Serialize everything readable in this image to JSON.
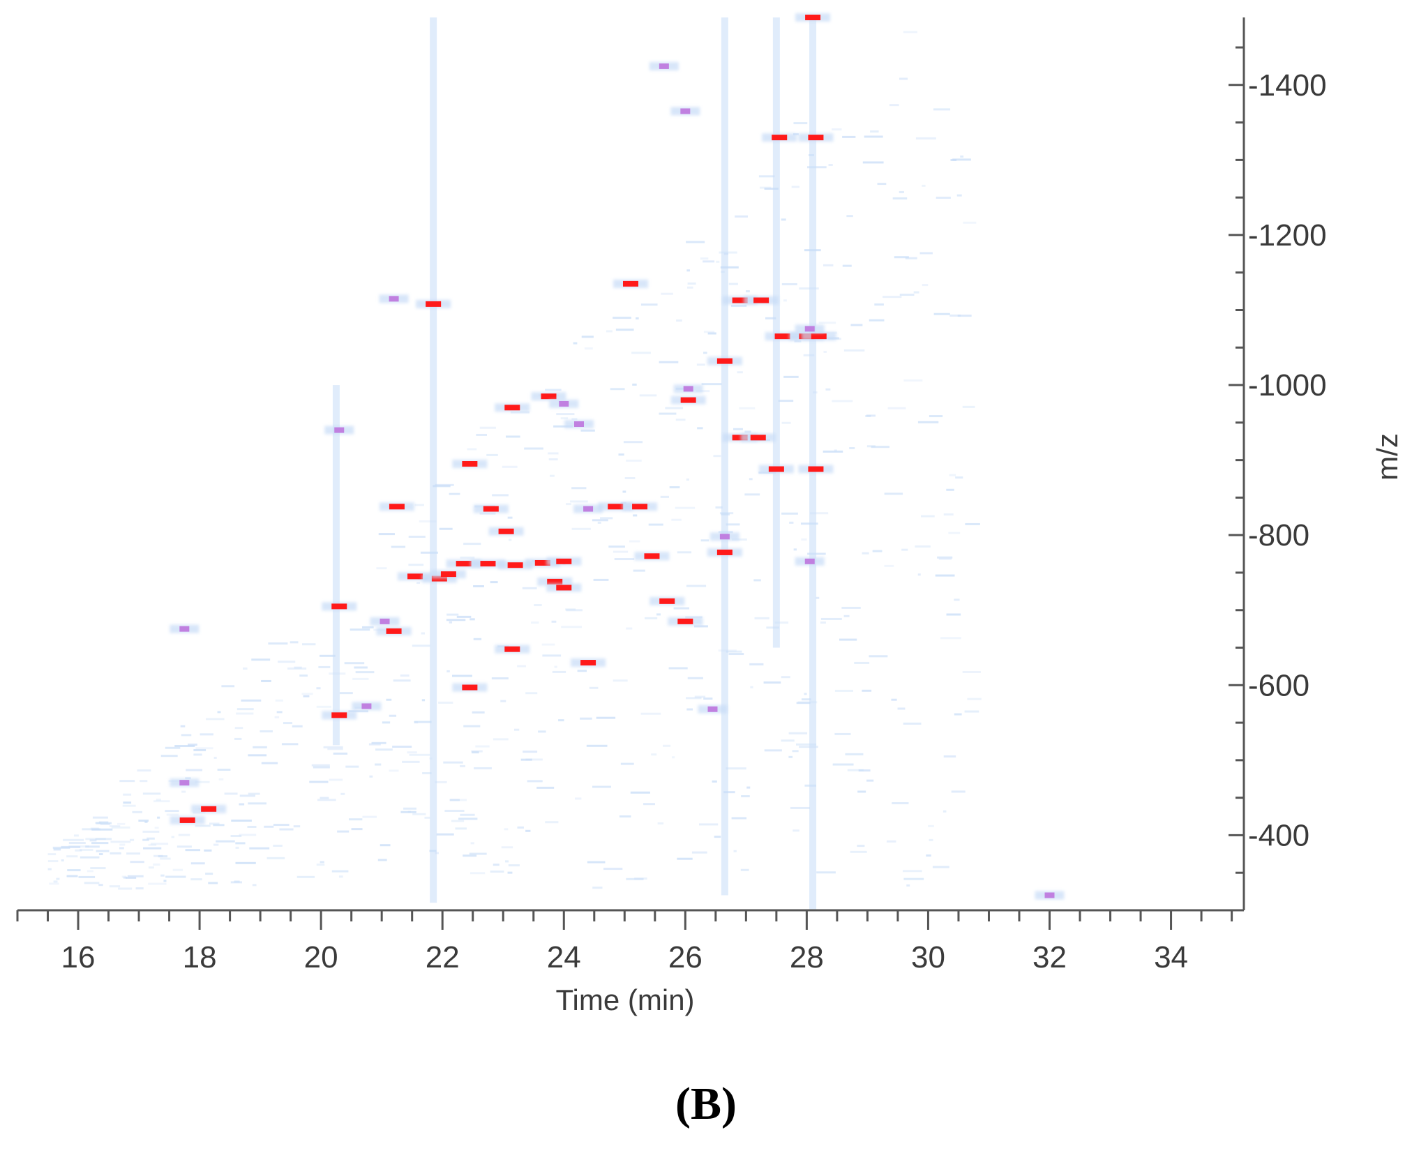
{
  "panel_label": "(B)",
  "chart_data": {
    "type": "heatmap",
    "title": "",
    "xlabel": "Time (min)",
    "ylabel": "m/z",
    "xlim": [
      15,
      35.2
    ],
    "ylim": [
      300,
      1490
    ],
    "x_ticks": [
      16,
      18,
      20,
      22,
      24,
      26,
      28,
      30,
      32,
      34
    ],
    "y_ticks": [
      400,
      600,
      800,
      1000,
      1200,
      1400
    ],
    "grid": false,
    "colors": {
      "low": "#c7dcf7",
      "mid": "#c080e0",
      "high": "#ff1a1a",
      "axis": "#555555"
    },
    "streaks": [
      {
        "x": 20.25,
        "y_from": 520,
        "y_to": 1000
      },
      {
        "x": 21.85,
        "y_from": 310,
        "y_to": 1490
      },
      {
        "x": 26.65,
        "y_from": 320,
        "y_to": 1490
      },
      {
        "x": 27.5,
        "y_from": 650,
        "y_to": 1490
      },
      {
        "x": 28.1,
        "y_from": 300,
        "y_to": 1490
      }
    ],
    "peaks": [
      {
        "x": 17.8,
        "y": 420,
        "level": "high"
      },
      {
        "x": 18.15,
        "y": 435,
        "level": "high"
      },
      {
        "x": 17.75,
        "y": 675,
        "level": "mid"
      },
      {
        "x": 17.75,
        "y": 470,
        "level": "mid"
      },
      {
        "x": 20.3,
        "y": 560,
        "level": "high"
      },
      {
        "x": 20.3,
        "y": 705,
        "level": "high"
      },
      {
        "x": 20.3,
        "y": 940,
        "level": "mid"
      },
      {
        "x": 20.75,
        "y": 572,
        "level": "mid"
      },
      {
        "x": 21.25,
        "y": 838,
        "level": "high"
      },
      {
        "x": 21.2,
        "y": 672,
        "level": "high"
      },
      {
        "x": 21.05,
        "y": 685,
        "level": "mid"
      },
      {
        "x": 21.2,
        "y": 1115,
        "level": "mid"
      },
      {
        "x": 21.55,
        "y": 745,
        "level": "high"
      },
      {
        "x": 21.95,
        "y": 742,
        "level": "high"
      },
      {
        "x": 22.1,
        "y": 748,
        "level": "high"
      },
      {
        "x": 21.85,
        "y": 1108,
        "level": "high"
      },
      {
        "x": 22.35,
        "y": 762,
        "level": "high"
      },
      {
        "x": 22.45,
        "y": 597,
        "level": "high"
      },
      {
        "x": 22.45,
        "y": 895,
        "level": "high"
      },
      {
        "x": 22.8,
        "y": 835,
        "level": "high"
      },
      {
        "x": 22.75,
        "y": 762,
        "level": "high"
      },
      {
        "x": 23.05,
        "y": 805,
        "level": "high"
      },
      {
        "x": 23.15,
        "y": 970,
        "level": "high"
      },
      {
        "x": 23.15,
        "y": 648,
        "level": "high"
      },
      {
        "x": 23.2,
        "y": 760,
        "level": "high"
      },
      {
        "x": 23.65,
        "y": 763,
        "level": "high"
      },
      {
        "x": 23.75,
        "y": 985,
        "level": "high"
      },
      {
        "x": 23.85,
        "y": 738,
        "level": "high"
      },
      {
        "x": 24.0,
        "y": 765,
        "level": "high"
      },
      {
        "x": 24.0,
        "y": 730,
        "level": "high"
      },
      {
        "x": 24.0,
        "y": 975,
        "level": "mid"
      },
      {
        "x": 24.25,
        "y": 948,
        "level": "mid"
      },
      {
        "x": 24.4,
        "y": 630,
        "level": "high"
      },
      {
        "x": 24.4,
        "y": 835,
        "level": "mid"
      },
      {
        "x": 24.85,
        "y": 838,
        "level": "high"
      },
      {
        "x": 25.25,
        "y": 838,
        "level": "high"
      },
      {
        "x": 25.1,
        "y": 1135,
        "level": "high"
      },
      {
        "x": 25.45,
        "y": 772,
        "level": "high"
      },
      {
        "x": 25.7,
        "y": 712,
        "level": "high"
      },
      {
        "x": 25.65,
        "y": 1425,
        "level": "mid"
      },
      {
        "x": 26.05,
        "y": 980,
        "level": "high"
      },
      {
        "x": 26.05,
        "y": 995,
        "level": "mid"
      },
      {
        "x": 26.0,
        "y": 685,
        "level": "high"
      },
      {
        "x": 26.0,
        "y": 1365,
        "level": "mid"
      },
      {
        "x": 26.45,
        "y": 568,
        "level": "mid"
      },
      {
        "x": 26.65,
        "y": 1032,
        "level": "high"
      },
      {
        "x": 26.65,
        "y": 777,
        "level": "high"
      },
      {
        "x": 26.65,
        "y": 798,
        "level": "mid"
      },
      {
        "x": 26.9,
        "y": 930,
        "level": "high"
      },
      {
        "x": 27.2,
        "y": 930,
        "level": "high"
      },
      {
        "x": 26.9,
        "y": 1113,
        "level": "high"
      },
      {
        "x": 27.25,
        "y": 1113,
        "level": "high"
      },
      {
        "x": 27.55,
        "y": 1330,
        "level": "high"
      },
      {
        "x": 28.15,
        "y": 1330,
        "level": "high"
      },
      {
        "x": 27.6,
        "y": 1065,
        "level": "high"
      },
      {
        "x": 28.0,
        "y": 1065,
        "level": "high"
      },
      {
        "x": 28.2,
        "y": 1065,
        "level": "high"
      },
      {
        "x": 28.05,
        "y": 1075,
        "level": "mid"
      },
      {
        "x": 27.5,
        "y": 888,
        "level": "high"
      },
      {
        "x": 28.15,
        "y": 888,
        "level": "high"
      },
      {
        "x": 28.1,
        "y": 1490,
        "level": "high"
      },
      {
        "x": 28.05,
        "y": 765,
        "level": "mid"
      },
      {
        "x": 32.0,
        "y": 320,
        "level": "mid"
      }
    ]
  }
}
